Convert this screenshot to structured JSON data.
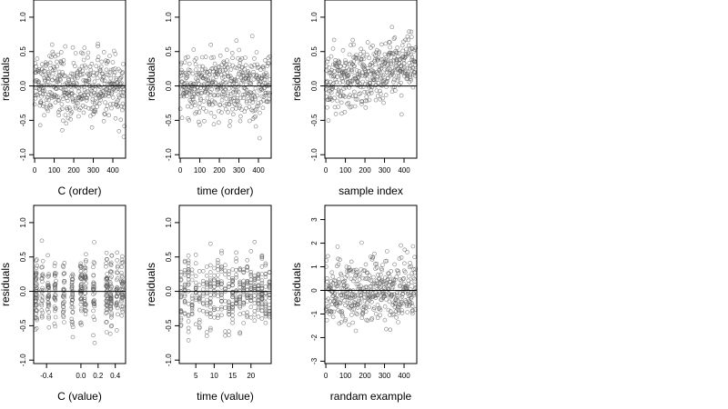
{
  "chart_data": [
    {
      "type": "scatter",
      "xlabel": "C (order)",
      "ylabel": "residuals",
      "xlim": [
        -5,
        465
      ],
      "ylim": [
        -1.05,
        1.25
      ],
      "xticks": [
        0,
        100,
        200,
        300,
        400
      ],
      "xtick_labels": [
        "0",
        "100",
        "200",
        "300",
        "400"
      ],
      "yticks": [
        -1,
        -0.5,
        0,
        0.5,
        1
      ],
      "ytick_labels": [
        "-1.0",
        "-0.5",
        "0.0",
        "0.5",
        "1.0"
      ],
      "reference_line": 0,
      "n_points": 450,
      "spread": 0.35,
      "trend": [
        0,
        0
      ],
      "x_distribution": "uniform",
      "point_style": "open circle",
      "grid": false
    },
    {
      "type": "scatter",
      "xlabel": "time (order)",
      "ylabel": "residuals",
      "xlim": [
        -5,
        465
      ],
      "ylim": [
        -1.05,
        1.25
      ],
      "xticks": [
        0,
        100,
        200,
        300,
        400
      ],
      "xtick_labels": [
        "0",
        "100",
        "200",
        "300",
        "400"
      ],
      "yticks": [
        -1,
        -0.5,
        0,
        0.5,
        1
      ],
      "ytick_labels": [
        "-1.0",
        "-0.5",
        "0.0",
        "0.5",
        "1.0"
      ],
      "reference_line": 0,
      "n_points": 450,
      "spread": 0.35,
      "trend": [
        0,
        0
      ],
      "x_distribution": "uniform",
      "point_style": "open circle",
      "grid": false
    },
    {
      "type": "scatter",
      "xlabel": "sample index",
      "ylabel": "residuals",
      "xlim": [
        -5,
        465
      ],
      "ylim": [
        -1.05,
        1.25
      ],
      "xticks": [
        0,
        100,
        200,
        300,
        400
      ],
      "xtick_labels": [
        "0",
        "100",
        "200",
        "300",
        "400"
      ],
      "yticks": [
        -1,
        -0.5,
        0,
        0.5,
        1
      ],
      "ytick_labels": [
        "-1.0",
        "-0.5",
        "0.0",
        "0.5",
        "1.0"
      ],
      "reference_line": 0,
      "n_points": 450,
      "spread": 0.3,
      "trend": [
        0.05,
        0.35
      ],
      "x_distribution": "uniform",
      "point_style": "open circle",
      "grid": false
    },
    {
      "type": "scatter",
      "xlabel": "C (value)",
      "ylabel": "residuals",
      "xlim": [
        -0.55,
        0.52
      ],
      "ylim": [
        -1.05,
        1.25
      ],
      "xticks": [
        -0.4,
        0,
        0.2,
        0.4
      ],
      "xtick_labels": [
        "-0.4",
        "0.0",
        "0.2",
        "0.4"
      ],
      "yticks": [
        -1,
        -0.5,
        0,
        0.5,
        1
      ],
      "ytick_labels": [
        "-1.0",
        "-0.5",
        "0.0",
        "0.5",
        "1.0"
      ],
      "reference_line": 0,
      "n_points": 450,
      "spread": 0.35,
      "trend": [
        0,
        0
      ],
      "x_distribution": "clustered",
      "x_clusters": [
        -0.52,
        -0.45,
        -0.38,
        -0.3,
        -0.2,
        -0.1,
        0.0,
        0.05,
        0.15,
        0.3,
        0.35,
        0.42,
        0.48
      ],
      "point_style": "open circle",
      "grid": false
    },
    {
      "type": "scatter",
      "xlabel": "time (value)",
      "ylabel": "residuals",
      "xlim": [
        0.5,
        25.5
      ],
      "ylim": [
        -1.05,
        1.25
      ],
      "xticks": [
        5,
        10,
        15,
        20
      ],
      "xtick_labels": [
        "5",
        "10",
        "15",
        "20"
      ],
      "yticks": [
        -1,
        -0.5,
        0,
        0.5,
        1
      ],
      "ytick_labels": [
        "-1.0",
        "-0.5",
        "0.0",
        "0.5",
        "1.0"
      ],
      "reference_line": 0,
      "n_points": 450,
      "spread": 0.35,
      "trend": [
        0,
        0
      ],
      "x_distribution": "integer",
      "x_integers": [
        1,
        25
      ],
      "point_style": "open circle",
      "grid": false
    },
    {
      "type": "scatter",
      "xlabel": "randam example",
      "ylabel": "residuals",
      "xlim": [
        -5,
        465
      ],
      "ylim": [
        -3.1,
        3.6
      ],
      "xticks": [
        0,
        100,
        200,
        300,
        400
      ],
      "xtick_labels": [
        "0",
        "100",
        "200",
        "300",
        "400"
      ],
      "yticks": [
        -3,
        -2,
        -1,
        0,
        1,
        2,
        3
      ],
      "ytick_labels": [
        "-3",
        "-2",
        "-1",
        "0",
        "1",
        "2",
        "3"
      ],
      "reference_line": 0,
      "n_points": 450,
      "spread": 1.0,
      "trend": [
        0,
        0
      ],
      "x_distribution": "uniform",
      "point_style": "open circle",
      "grid": false
    }
  ]
}
